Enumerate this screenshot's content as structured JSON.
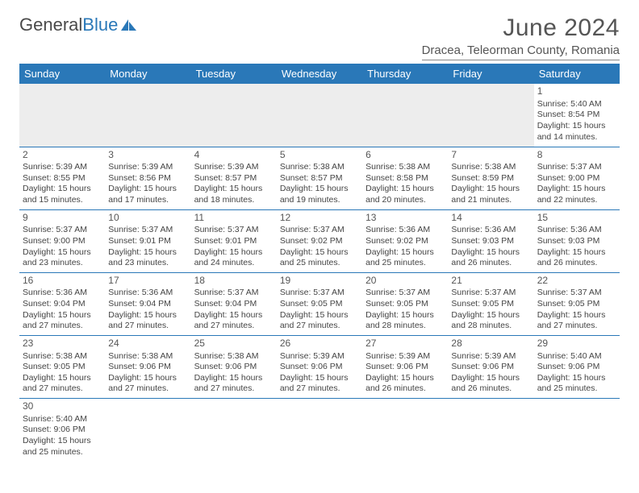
{
  "branding": {
    "general": "General",
    "blue": "Blue"
  },
  "header": {
    "month_title": "June 2024",
    "location": "Dracea, Teleorman County, Romania"
  },
  "style": {
    "header_bg": "#2a78b8",
    "header_fg": "#ffffff",
    "rule_color": "#2a78b8",
    "body_text": "#444444",
    "title_color": "#555555",
    "font_family": "Arial, Helvetica, sans-serif",
    "month_title_fontsize_pt": 22,
    "location_fontsize_pt": 11,
    "day_header_fontsize_pt": 10,
    "cell_fontsize_pt": 8
  },
  "calendar": {
    "columns": [
      "Sunday",
      "Monday",
      "Tuesday",
      "Wednesday",
      "Thursday",
      "Friday",
      "Saturday"
    ],
    "weeks": [
      [
        null,
        null,
        null,
        null,
        null,
        null,
        {
          "n": "1",
          "sr": "Sunrise: 5:40 AM",
          "ss": "Sunset: 8:54 PM",
          "d1": "Daylight: 15 hours",
          "d2": "and 14 minutes."
        }
      ],
      [
        {
          "n": "2",
          "sr": "Sunrise: 5:39 AM",
          "ss": "Sunset: 8:55 PM",
          "d1": "Daylight: 15 hours",
          "d2": "and 15 minutes."
        },
        {
          "n": "3",
          "sr": "Sunrise: 5:39 AM",
          "ss": "Sunset: 8:56 PM",
          "d1": "Daylight: 15 hours",
          "d2": "and 17 minutes."
        },
        {
          "n": "4",
          "sr": "Sunrise: 5:39 AM",
          "ss": "Sunset: 8:57 PM",
          "d1": "Daylight: 15 hours",
          "d2": "and 18 minutes."
        },
        {
          "n": "5",
          "sr": "Sunrise: 5:38 AM",
          "ss": "Sunset: 8:57 PM",
          "d1": "Daylight: 15 hours",
          "d2": "and 19 minutes."
        },
        {
          "n": "6",
          "sr": "Sunrise: 5:38 AM",
          "ss": "Sunset: 8:58 PM",
          "d1": "Daylight: 15 hours",
          "d2": "and 20 minutes."
        },
        {
          "n": "7",
          "sr": "Sunrise: 5:38 AM",
          "ss": "Sunset: 8:59 PM",
          "d1": "Daylight: 15 hours",
          "d2": "and 21 minutes."
        },
        {
          "n": "8",
          "sr": "Sunrise: 5:37 AM",
          "ss": "Sunset: 9:00 PM",
          "d1": "Daylight: 15 hours",
          "d2": "and 22 minutes."
        }
      ],
      [
        {
          "n": "9",
          "sr": "Sunrise: 5:37 AM",
          "ss": "Sunset: 9:00 PM",
          "d1": "Daylight: 15 hours",
          "d2": "and 23 minutes."
        },
        {
          "n": "10",
          "sr": "Sunrise: 5:37 AM",
          "ss": "Sunset: 9:01 PM",
          "d1": "Daylight: 15 hours",
          "d2": "and 23 minutes."
        },
        {
          "n": "11",
          "sr": "Sunrise: 5:37 AM",
          "ss": "Sunset: 9:01 PM",
          "d1": "Daylight: 15 hours",
          "d2": "and 24 minutes."
        },
        {
          "n": "12",
          "sr": "Sunrise: 5:37 AM",
          "ss": "Sunset: 9:02 PM",
          "d1": "Daylight: 15 hours",
          "d2": "and 25 minutes."
        },
        {
          "n": "13",
          "sr": "Sunrise: 5:36 AM",
          "ss": "Sunset: 9:02 PM",
          "d1": "Daylight: 15 hours",
          "d2": "and 25 minutes."
        },
        {
          "n": "14",
          "sr": "Sunrise: 5:36 AM",
          "ss": "Sunset: 9:03 PM",
          "d1": "Daylight: 15 hours",
          "d2": "and 26 minutes."
        },
        {
          "n": "15",
          "sr": "Sunrise: 5:36 AM",
          "ss": "Sunset: 9:03 PM",
          "d1": "Daylight: 15 hours",
          "d2": "and 26 minutes."
        }
      ],
      [
        {
          "n": "16",
          "sr": "Sunrise: 5:36 AM",
          "ss": "Sunset: 9:04 PM",
          "d1": "Daylight: 15 hours",
          "d2": "and 27 minutes."
        },
        {
          "n": "17",
          "sr": "Sunrise: 5:36 AM",
          "ss": "Sunset: 9:04 PM",
          "d1": "Daylight: 15 hours",
          "d2": "and 27 minutes."
        },
        {
          "n": "18",
          "sr": "Sunrise: 5:37 AM",
          "ss": "Sunset: 9:04 PM",
          "d1": "Daylight: 15 hours",
          "d2": "and 27 minutes."
        },
        {
          "n": "19",
          "sr": "Sunrise: 5:37 AM",
          "ss": "Sunset: 9:05 PM",
          "d1": "Daylight: 15 hours",
          "d2": "and 27 minutes."
        },
        {
          "n": "20",
          "sr": "Sunrise: 5:37 AM",
          "ss": "Sunset: 9:05 PM",
          "d1": "Daylight: 15 hours",
          "d2": "and 28 minutes."
        },
        {
          "n": "21",
          "sr": "Sunrise: 5:37 AM",
          "ss": "Sunset: 9:05 PM",
          "d1": "Daylight: 15 hours",
          "d2": "and 28 minutes."
        },
        {
          "n": "22",
          "sr": "Sunrise: 5:37 AM",
          "ss": "Sunset: 9:05 PM",
          "d1": "Daylight: 15 hours",
          "d2": "and 27 minutes."
        }
      ],
      [
        {
          "n": "23",
          "sr": "Sunrise: 5:38 AM",
          "ss": "Sunset: 9:05 PM",
          "d1": "Daylight: 15 hours",
          "d2": "and 27 minutes."
        },
        {
          "n": "24",
          "sr": "Sunrise: 5:38 AM",
          "ss": "Sunset: 9:06 PM",
          "d1": "Daylight: 15 hours",
          "d2": "and 27 minutes."
        },
        {
          "n": "25",
          "sr": "Sunrise: 5:38 AM",
          "ss": "Sunset: 9:06 PM",
          "d1": "Daylight: 15 hours",
          "d2": "and 27 minutes."
        },
        {
          "n": "26",
          "sr": "Sunrise: 5:39 AM",
          "ss": "Sunset: 9:06 PM",
          "d1": "Daylight: 15 hours",
          "d2": "and 27 minutes."
        },
        {
          "n": "27",
          "sr": "Sunrise: 5:39 AM",
          "ss": "Sunset: 9:06 PM",
          "d1": "Daylight: 15 hours",
          "d2": "and 26 minutes."
        },
        {
          "n": "28",
          "sr": "Sunrise: 5:39 AM",
          "ss": "Sunset: 9:06 PM",
          "d1": "Daylight: 15 hours",
          "d2": "and 26 minutes."
        },
        {
          "n": "29",
          "sr": "Sunrise: 5:40 AM",
          "ss": "Sunset: 9:06 PM",
          "d1": "Daylight: 15 hours",
          "d2": "and 25 minutes."
        }
      ],
      [
        {
          "n": "30",
          "sr": "Sunrise: 5:40 AM",
          "ss": "Sunset: 9:06 PM",
          "d1": "Daylight: 15 hours",
          "d2": "and 25 minutes."
        },
        null,
        null,
        null,
        null,
        null,
        null
      ]
    ]
  }
}
